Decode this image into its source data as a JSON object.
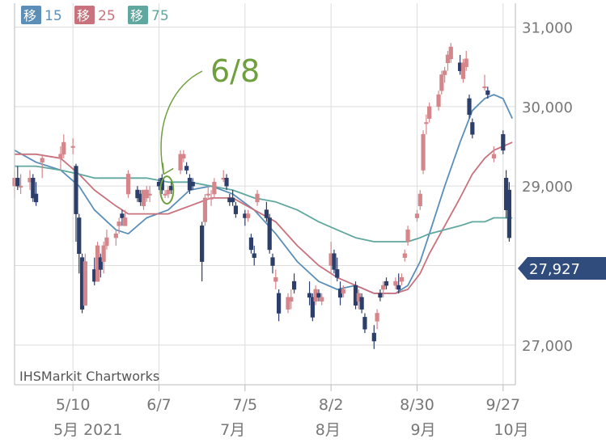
{
  "chart_data": {
    "type": "candlestick",
    "watermark": "IHSMarkit Chartworks",
    "annotation": "6/8",
    "last_price_label": "27,927",
    "colors": {
      "up": "#d4868a",
      "down": "#2c3e6a",
      "ma15": "#5b8fb7",
      "ma25": "#c8727d",
      "ma75": "#5fa79f",
      "annotation": "#6fa03d",
      "last_price_tag": "#2f4c7c",
      "grid": "#dddddd",
      "axis_text": "#777777"
    },
    "legend": [
      {
        "badge": "移",
        "period": "15",
        "series": "ma15"
      },
      {
        "badge": "移",
        "period": "25",
        "series": "ma25"
      },
      {
        "badge": "移",
        "period": "75",
        "series": "ma75"
      }
    ],
    "y_axis": {
      "ticks": [
        27000,
        28000,
        29000,
        30000,
        31000
      ],
      "tick_labels": [
        "27,000",
        "",
        "29,000",
        "30,000",
        "31,000"
      ],
      "range": [
        26500,
        31300
      ]
    },
    "x_axis": {
      "range_start": "2021-04-21",
      "range_end": "2021-10-01",
      "ticks": [
        {
          "date": "2021-05-10",
          "label": "5/10"
        },
        {
          "date": "2021-06-07",
          "label": "6/7"
        },
        {
          "date": "2021-07-05",
          "label": "7/5"
        },
        {
          "date": "2021-08-02",
          "label": "8/2"
        },
        {
          "date": "2021-08-30",
          "label": "8/30"
        },
        {
          "date": "2021-09-27",
          "label": "9/27"
        }
      ],
      "month_labels": [
        {
          "date": "2021-05-01",
          "label": "5月 2021"
        },
        {
          "date": "2021-07-01",
          "label": "7月"
        },
        {
          "date": "2021-08-01",
          "label": "8月"
        },
        {
          "date": "2021-09-01",
          "label": "9月"
        },
        {
          "date": "2021-10-01",
          "label": "10月"
        }
      ]
    },
    "candles": [
      [
        "2021-04-21",
        29000,
        29200,
        28850,
        29100
      ],
      [
        "2021-04-22",
        29100,
        29250,
        28950,
        29000
      ],
      [
        "2021-04-23",
        29000,
        29150,
        28900,
        29000
      ],
      [
        "2021-04-26",
        29050,
        29200,
        28950,
        29100
      ],
      [
        "2021-04-27",
        29100,
        29150,
        28800,
        28850
      ],
      [
        "2021-04-28",
        28900,
        29050,
        28750,
        28800
      ],
      [
        "2021-04-30",
        29300,
        29400,
        29100,
        29350
      ],
      [
        "2021-05-06",
        29350,
        29500,
        29200,
        29400
      ],
      [
        "2021-05-07",
        29400,
        29650,
        29350,
        29550
      ],
      [
        "2021-05-10",
        29500,
        29600,
        29400,
        29500
      ],
      [
        "2021-05-11",
        29250,
        29280,
        28300,
        28650
      ],
      [
        "2021-05-12",
        28600,
        28650,
        27900,
        28150
      ],
      [
        "2021-05-13",
        28100,
        28150,
        27400,
        27450
      ],
      [
        "2021-05-14",
        27500,
        28150,
        27500,
        28050
      ],
      [
        "2021-05-17",
        27950,
        28100,
        27750,
        27800
      ],
      [
        "2021-05-18",
        27800,
        28300,
        27800,
        28250
      ],
      [
        "2021-05-19",
        28100,
        28150,
        27850,
        27950
      ],
      [
        "2021-05-20",
        28050,
        28300,
        27900,
        28250
      ],
      [
        "2021-05-21",
        28250,
        28450,
        28200,
        28350
      ],
      [
        "2021-05-24",
        28350,
        28450,
        28250,
        28400
      ],
      [
        "2021-05-25",
        28500,
        28600,
        28400,
        28550
      ],
      [
        "2021-05-26",
        28650,
        28700,
        28500,
        28600
      ],
      [
        "2021-05-27",
        28500,
        28700,
        28500,
        28600
      ],
      [
        "2021-05-28",
        28900,
        29200,
        28850,
        29150
      ],
      [
        "2021-05-31",
        28950,
        29000,
        28800,
        28850
      ],
      [
        "2021-06-01",
        28900,
        28950,
        28750,
        28800
      ],
      [
        "2021-06-02",
        28750,
        28950,
        28700,
        28950
      ],
      [
        "2021-06-03",
        28850,
        29000,
        28800,
        28950
      ],
      [
        "2021-06-04",
        28900,
        29000,
        28800,
        28900
      ],
      [
        "2021-06-07",
        29050,
        29100,
        28950,
        29000
      ],
      [
        "2021-06-08",
        29100,
        29150,
        28900,
        28950
      ],
      [
        "2021-06-09",
        28900,
        28950,
        28850,
        28900
      ],
      [
        "2021-06-10",
        28900,
        29000,
        28850,
        28950
      ],
      [
        "2021-06-11",
        29000,
        29050,
        28900,
        28950
      ],
      [
        "2021-06-14",
        29200,
        29450,
        29150,
        29400
      ],
      [
        "2021-06-15",
        29350,
        29450,
        29300,
        29400
      ],
      [
        "2021-06-16",
        29250,
        29300,
        29150,
        29200
      ],
      [
        "2021-06-17",
        29100,
        29150,
        28900,
        28950
      ],
      [
        "2021-06-18",
        29050,
        29100,
        28950,
        29000
      ],
      [
        "2021-06-21",
        28500,
        28550,
        27800,
        28050
      ],
      [
        "2021-06-22",
        28550,
        28900,
        28500,
        28850
      ],
      [
        "2021-06-23",
        28900,
        29000,
        28850,
        28900
      ],
      [
        "2021-06-24",
        28850,
        28950,
        28750,
        28850
      ],
      [
        "2021-06-25",
        28900,
        29100,
        28850,
        29050
      ],
      [
        "2021-06-28",
        29100,
        29200,
        29050,
        29100
      ],
      [
        "2021-06-29",
        29100,
        29150,
        28950,
        29000
      ],
      [
        "2021-06-30",
        28850,
        28900,
        28750,
        28800
      ],
      [
        "2021-07-01",
        28850,
        28950,
        28750,
        28800
      ],
      [
        "2021-07-02",
        28750,
        28800,
        28600,
        28650
      ],
      [
        "2021-07-05",
        28650,
        28700,
        28500,
        28600
      ],
      [
        "2021-07-06",
        28600,
        28700,
        28550,
        28650
      ],
      [
        "2021-07-07",
        28350,
        28400,
        28150,
        28200
      ],
      [
        "2021-07-08",
        28150,
        28250,
        28000,
        28100
      ],
      [
        "2021-07-09",
        28800,
        28950,
        28750,
        28900
      ],
      [
        "2021-07-12",
        28700,
        28800,
        28550,
        28600
      ],
      [
        "2021-07-13",
        28600,
        28650,
        28150,
        28200
      ],
      [
        "2021-07-14",
        28100,
        28150,
        27900,
        28000
      ],
      [
        "2021-07-15",
        27800,
        27950,
        27700,
        27850
      ],
      [
        "2021-07-16",
        27650,
        27700,
        27300,
        27400
      ],
      [
        "2021-07-19",
        27450,
        27650,
        27400,
        27600
      ],
      [
        "2021-07-20",
        27550,
        27700,
        27450,
        27600
      ],
      [
        "2021-07-21",
        27800,
        27900,
        27650,
        27700
      ],
      [
        "2021-07-26",
        27650,
        27800,
        27500,
        27600
      ],
      [
        "2021-07-27",
        27600,
        27650,
        27300,
        27350
      ],
      [
        "2021-07-28",
        27550,
        27750,
        27500,
        27700
      ],
      [
        "2021-07-29",
        27650,
        27700,
        27550,
        27600
      ],
      [
        "2021-07-30",
        27550,
        27650,
        27500,
        27600
      ],
      [
        "2021-08-02",
        28000,
        28300,
        27900,
        28150
      ],
      [
        "2021-08-03",
        28150,
        28200,
        27900,
        27950
      ],
      [
        "2021-08-04",
        27950,
        28100,
        27800,
        27850
      ],
      [
        "2021-08-05",
        27700,
        27800,
        27500,
        27600
      ],
      [
        "2021-08-06",
        27650,
        27750,
        27600,
        27700
      ],
      [
        "2021-08-10",
        27750,
        27800,
        27450,
        27500
      ],
      [
        "2021-08-11",
        27550,
        27700,
        27450,
        27650
      ],
      [
        "2021-08-12",
        27600,
        27650,
        27400,
        27450
      ],
      [
        "2021-08-13",
        27350,
        27400,
        27150,
        27200
      ],
      [
        "2021-08-16",
        27150,
        27250,
        26950,
        27050
      ],
      [
        "2021-08-17",
        27300,
        27450,
        27200,
        27400
      ],
      [
        "2021-08-18",
        27650,
        27700,
        27550,
        27600
      ],
      [
        "2021-08-19",
        27700,
        27800,
        27600,
        27750
      ],
      [
        "2021-08-20",
        27800,
        27850,
        27700,
        27750
      ],
      [
        "2021-08-23",
        27750,
        27850,
        27700,
        27800
      ],
      [
        "2021-08-24",
        27750,
        27900,
        27650,
        27700
      ],
      [
        "2021-08-25",
        27800,
        27900,
        27750,
        27850
      ],
      [
        "2021-08-26",
        28100,
        28200,
        28050,
        28150
      ],
      [
        "2021-08-27",
        28300,
        28500,
        28250,
        28450
      ],
      [
        "2021-08-30",
        28600,
        28700,
        28550,
        28650
      ],
      [
        "2021-08-31",
        28750,
        28950,
        28700,
        28900
      ],
      [
        "2021-09-01",
        29200,
        29700,
        29150,
        29650
      ],
      [
        "2021-09-02",
        29800,
        29900,
        29650,
        29800
      ],
      [
        "2021-09-03",
        29850,
        30050,
        29800,
        30000
      ],
      [
        "2021-09-06",
        30000,
        30200,
        29950,
        30150
      ],
      [
        "2021-09-07",
        30200,
        30450,
        30150,
        30400
      ],
      [
        "2021-09-08",
        30400,
        30500,
        30300,
        30450
      ],
      [
        "2021-09-09",
        30550,
        30700,
        30450,
        30650
      ],
      [
        "2021-09-10",
        30600,
        30800,
        30550,
        30750
      ],
      [
        "2021-09-13",
        30550,
        30650,
        30400,
        30450
      ],
      [
        "2021-09-14",
        30350,
        30600,
        30300,
        30550
      ],
      [
        "2021-09-15",
        30500,
        30700,
        30450,
        30600
      ],
      [
        "2021-09-16",
        30100,
        30150,
        29850,
        29900
      ],
      [
        "2021-09-17",
        29800,
        29850,
        29600,
        29650
      ],
      [
        "2021-09-21",
        30250,
        30400,
        30200,
        30250
      ],
      [
        "2021-09-22",
        30200,
        30250,
        30100,
        30150
      ],
      [
        "2021-09-24",
        29350,
        29500,
        29300,
        29400
      ],
      [
        "2021-09-27",
        29650,
        29700,
        29400,
        29450
      ],
      [
        "2021-09-28",
        29100,
        29200,
        28600,
        28700
      ],
      [
        "2021-09-29",
        28950,
        29050,
        28300,
        28350
      ]
    ],
    "ma15": [
      [
        "2021-04-21",
        29450
      ],
      [
        "2021-04-28",
        29300
      ],
      [
        "2021-05-06",
        29200
      ],
      [
        "2021-05-12",
        29000
      ],
      [
        "2021-05-17",
        28700
      ],
      [
        "2021-05-24",
        28450
      ],
      [
        "2021-05-28",
        28400
      ],
      [
        "2021-06-03",
        28600
      ],
      [
        "2021-06-10",
        28700
      ],
      [
        "2021-06-17",
        28950
      ],
      [
        "2021-06-24",
        29000
      ],
      [
        "2021-07-01",
        28900
      ],
      [
        "2021-07-08",
        28700
      ],
      [
        "2021-07-15",
        28400
      ],
      [
        "2021-07-22",
        28050
      ],
      [
        "2021-07-29",
        27800
      ],
      [
        "2021-08-04",
        27700
      ],
      [
        "2021-08-10",
        27750
      ],
      [
        "2021-08-16",
        27650
      ],
      [
        "2021-08-23",
        27650
      ],
      [
        "2021-08-27",
        27750
      ],
      [
        "2021-08-31",
        28050
      ],
      [
        "2021-09-03",
        28400
      ],
      [
        "2021-09-08",
        29000
      ],
      [
        "2021-09-13",
        29550
      ],
      [
        "2021-09-17",
        29950
      ],
      [
        "2021-09-21",
        30100
      ],
      [
        "2021-09-24",
        30150
      ],
      [
        "2021-09-27",
        30100
      ],
      [
        "2021-09-30",
        29850
      ]
    ],
    "ma25": [
      [
        "2021-04-21",
        29400
      ],
      [
        "2021-04-28",
        29400
      ],
      [
        "2021-05-06",
        29350
      ],
      [
        "2021-05-12",
        29150
      ],
      [
        "2021-05-17",
        28950
      ],
      [
        "2021-05-24",
        28750
      ],
      [
        "2021-05-28",
        28650
      ],
      [
        "2021-06-03",
        28650
      ],
      [
        "2021-06-10",
        28650
      ],
      [
        "2021-06-17",
        28750
      ],
      [
        "2021-06-24",
        28850
      ],
      [
        "2021-07-01",
        28850
      ],
      [
        "2021-07-08",
        28700
      ],
      [
        "2021-07-15",
        28550
      ],
      [
        "2021-07-22",
        28250
      ],
      [
        "2021-07-29",
        28000
      ],
      [
        "2021-08-04",
        27850
      ],
      [
        "2021-08-10",
        27750
      ],
      [
        "2021-08-16",
        27650
      ],
      [
        "2021-08-23",
        27650
      ],
      [
        "2021-08-27",
        27700
      ],
      [
        "2021-08-31",
        27900
      ],
      [
        "2021-09-03",
        28150
      ],
      [
        "2021-09-08",
        28500
      ],
      [
        "2021-09-13",
        28850
      ],
      [
        "2021-09-17",
        29150
      ],
      [
        "2021-09-21",
        29350
      ],
      [
        "2021-09-24",
        29450
      ],
      [
        "2021-09-27",
        29500
      ],
      [
        "2021-09-30",
        29550
      ]
    ],
    "ma75": [
      [
        "2021-04-21",
        29250
      ],
      [
        "2021-04-28",
        29250
      ],
      [
        "2021-05-06",
        29200
      ],
      [
        "2021-05-12",
        29150
      ],
      [
        "2021-05-17",
        29100
      ],
      [
        "2021-05-24",
        29100
      ],
      [
        "2021-05-28",
        29100
      ],
      [
        "2021-06-03",
        29100
      ],
      [
        "2021-06-10",
        29050
      ],
      [
        "2021-06-17",
        29050
      ],
      [
        "2021-06-24",
        29000
      ],
      [
        "2021-07-01",
        28950
      ],
      [
        "2021-07-08",
        28850
      ],
      [
        "2021-07-15",
        28800
      ],
      [
        "2021-07-22",
        28700
      ],
      [
        "2021-07-29",
        28550
      ],
      [
        "2021-08-04",
        28450
      ],
      [
        "2021-08-10",
        28350
      ],
      [
        "2021-08-16",
        28300
      ],
      [
        "2021-08-23",
        28300
      ],
      [
        "2021-08-27",
        28300
      ],
      [
        "2021-08-31",
        28350
      ],
      [
        "2021-09-03",
        28400
      ],
      [
        "2021-09-08",
        28450
      ],
      [
        "2021-09-13",
        28500
      ],
      [
        "2021-09-17",
        28550
      ],
      [
        "2021-09-21",
        28550
      ],
      [
        "2021-09-24",
        28600
      ],
      [
        "2021-09-27",
        28600
      ],
      [
        "2021-09-30",
        28600
      ]
    ]
  }
}
